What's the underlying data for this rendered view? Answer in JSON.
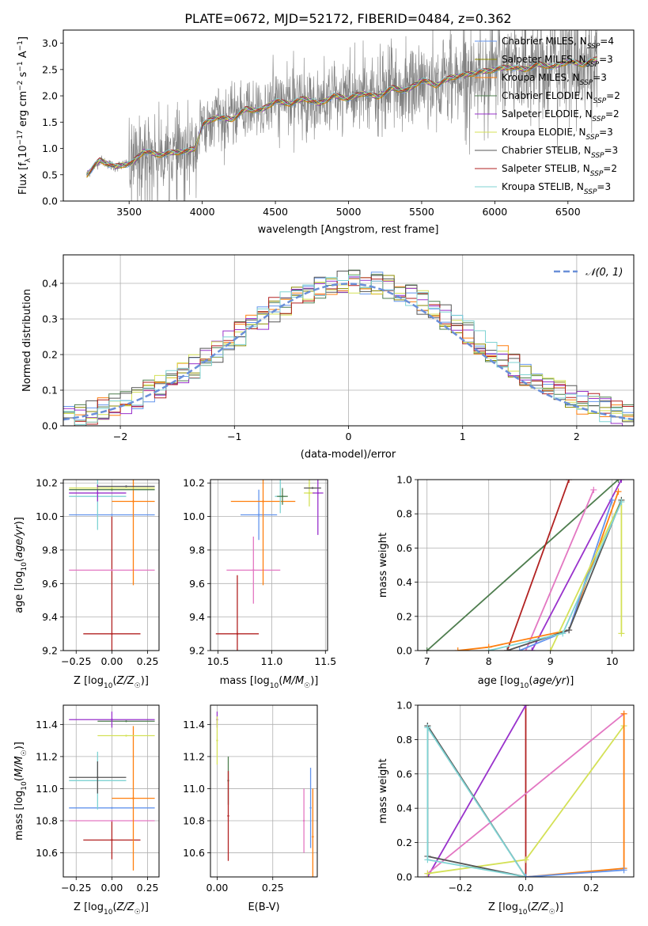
{
  "figure_title": "PLATE=0672, MJD=52172, FIBERID=0484, z=0.362",
  "colors": {
    "Chabrier MILES": "#6495ed",
    "Salpeter MILES": "#8b8b00",
    "Kroupa MILES": "#ff7f0e",
    "Chabrier ELODIE": "#4e7d4e",
    "Salpeter ELODIE": "#9932cc",
    "Kroupa ELODIE": "#d4e157",
    "Chabrier STELIB": "#555555",
    "Salpeter STELIB": "#b22222",
    "Kroupa STELIB": "#7fd3d3",
    "extra": "#e377c2",
    "data": "#808080",
    "gaussian": "#6a8fd8"
  },
  "chart_data": [
    {
      "type": "line",
      "title": "PLATE=0672, MJD=52172, FIBERID=0484, z=0.362",
      "xlabel": "wavelength [Angstrom, rest frame]",
      "ylabel": "Flux [f_λ 10^-17 erg cm^-2 s^-1 A^-1]",
      "xlim": [
        3050,
        6950
      ],
      "ylim": [
        0,
        3.25
      ],
      "xticks": [
        3500,
        4000,
        4500,
        5000,
        5500,
        6000,
        6500
      ],
      "yticks": [
        0.0,
        0.5,
        1.0,
        1.5,
        2.0,
        2.5,
        3.0
      ],
      "grid": false,
      "legend_position": "top-right",
      "legend": [
        {
          "name": "Chabrier MILES",
          "nssp": "4"
        },
        {
          "name": "Salpeter MILES",
          "nssp": "3"
        },
        {
          "name": "Kroupa MILES",
          "nssp": "3"
        },
        {
          "name": "Chabrier ELODIE",
          "nssp": "2"
        },
        {
          "name": "Salpeter ELODIE",
          "nssp": "2"
        },
        {
          "name": "Kroupa ELODIE",
          "nssp": "3"
        },
        {
          "name": "Chabrier STELIB",
          "nssp": "3"
        },
        {
          "name": "Salpeter STELIB",
          "nssp": "2"
        },
        {
          "name": "Kroupa STELIB",
          "nssp": "3"
        }
      ],
      "model_curve": {
        "x": [
          3210,
          3300,
          3400,
          3480,
          3520,
          3600,
          3700,
          3800,
          3900,
          3950,
          4000,
          4100,
          4200,
          4300,
          4400,
          4500,
          4600,
          4700,
          4800,
          4900,
          5000,
          5100,
          5200,
          5300,
          5400,
          5500,
          5600,
          5700,
          5800,
          5900,
          6000,
          6100,
          6200,
          6300,
          6400,
          6500,
          6600,
          6700
        ],
        "y": [
          0.5,
          0.78,
          0.65,
          0.7,
          0.72,
          0.95,
          0.88,
          0.92,
          0.95,
          1.0,
          1.45,
          1.6,
          1.55,
          1.75,
          1.72,
          1.9,
          1.85,
          1.95,
          1.85,
          2.0,
          1.95,
          2.05,
          1.98,
          2.15,
          2.1,
          2.3,
          2.2,
          2.35,
          2.4,
          2.45,
          2.5,
          2.55,
          2.5,
          2.6,
          2.55,
          2.65,
          2.6,
          2.7
        ]
      },
      "data_range": {
        "x": [
          3210,
          6700
        ]
      }
    },
    {
      "type": "bar",
      "xlabel": "(data-model)/error",
      "ylabel": "Normed distribution",
      "xlim": [
        -2.5,
        2.5
      ],
      "ylim": [
        0,
        0.48
      ],
      "xticks": [
        -2,
        -1,
        0,
        1,
        2
      ],
      "yticks": [
        0.0,
        0.1,
        0.2,
        0.3,
        0.4
      ],
      "grid": true,
      "legend_position": "top-right",
      "legend": [
        {
          "name": "𝒩(0, 1)"
        }
      ],
      "bin_width": 0.1
    },
    {
      "type": "scatter",
      "xlabel": "Z [log10(Z/Z☉)]",
      "ylabel": "age  [log10(age/yr)]",
      "xlim": [
        -0.34,
        0.33
      ],
      "ylim": [
        9.2,
        10.22
      ],
      "xticks": [
        -0.25,
        0.0,
        0.25
      ],
      "xticklabels": [
        "−0.25",
        "0.00",
        "0.25"
      ],
      "yticks": [
        9.2,
        9.4,
        9.6,
        9.8,
        10.0,
        10.2
      ],
      "grid": true,
      "points": [
        {
          "series": "Salpeter STELIB",
          "x": 0.0,
          "y": 9.3,
          "xerr": 0.2,
          "yerr": 0.7
        },
        {
          "series": "extra",
          "x": 0.0,
          "y": 9.68,
          "xerr": 0.3,
          "yerr": 0.0
        },
        {
          "series": "Chabrier MILES",
          "x": 0.0,
          "y": 10.01,
          "xerr": 0.3,
          "yerr": 0.0
        },
        {
          "series": "Kroupa MILES",
          "x": 0.15,
          "y": 10.09,
          "xerr": 0.15,
          "yerr": 0.5
        },
        {
          "series": "Kroupa STELIB",
          "x": -0.1,
          "y": 10.12,
          "xerr": 0.2,
          "yerr": 0.2
        },
        {
          "series": "Salpeter ELODIE",
          "x": -0.1,
          "y": 10.14,
          "xerr": 0.2,
          "yerr": 0.05
        },
        {
          "series": "Chabrier ELODIE",
          "x": 0.0,
          "y": 10.16,
          "xerr": 0.3,
          "yerr": 0.0
        },
        {
          "series": "Kroupa ELODIE",
          "x": 0.0,
          "y": 10.17,
          "xerr": 0.3,
          "yerr": 0.0
        },
        {
          "series": "Chabrier STELIB",
          "x": 0.1,
          "y": 10.18,
          "xerr": 0.2,
          "yerr": 0.0
        }
      ]
    },
    {
      "type": "scatter",
      "xlabel": "mass [log10(M/M☉)]",
      "xlim": [
        10.43,
        11.52
      ],
      "ylim": [
        9.2,
        10.22
      ],
      "xticks": [
        10.5,
        11.0,
        11.5
      ],
      "xticklabels": [
        "10.5",
        "11.0",
        "11.5"
      ],
      "yticks": [
        9.2,
        9.4,
        9.6,
        9.8,
        10.0,
        10.2
      ],
      "grid": true,
      "points": [
        {
          "series": "Salpeter STELIB",
          "x": 10.68,
          "y": 9.3,
          "xerr": 0.2,
          "yerr": 0.35
        },
        {
          "series": "extra",
          "x": 10.83,
          "y": 9.68,
          "xerr": 0.25,
          "yerr": 0.2
        },
        {
          "series": "Chabrier MILES",
          "x": 10.88,
          "y": 10.01,
          "xerr": 0.17,
          "yerr": 0.15
        },
        {
          "series": "Kroupa MILES",
          "x": 10.92,
          "y": 10.09,
          "xerr": 0.3,
          "yerr": 0.5
        },
        {
          "series": "Kroupa STELIB",
          "x": 11.08,
          "y": 10.12,
          "xerr": 0.05,
          "yerr": 0.1
        },
        {
          "series": "Chabrier ELODIE",
          "x": 11.1,
          "y": 10.12,
          "xerr": 0.05,
          "yerr": 0.05
        },
        {
          "series": "Kroupa ELODIE",
          "x": 11.35,
          "y": 10.14,
          "xerr": 0.05,
          "yerr": 0.08
        },
        {
          "series": "Salpeter ELODIE",
          "x": 11.43,
          "y": 10.14,
          "xerr": 0.05,
          "yerr": 0.25
        },
        {
          "series": "Chabrier STELIB",
          "x": 11.38,
          "y": 10.17,
          "xerr": 0.08,
          "yerr": 0.0
        }
      ]
    },
    {
      "type": "line",
      "xlabel": "age  [log10(age/yr)]",
      "ylabel": "mass weight",
      "xlim": [
        6.85,
        10.35
      ],
      "ylim": [
        0,
        1.0
      ],
      "xticks": [
        7,
        8,
        9,
        10
      ],
      "yticks": [
        0.0,
        0.2,
        0.4,
        0.6,
        0.8,
        1.0
      ],
      "grid": true,
      "series": [
        {
          "name": "Chabrier ELODIE",
          "x": [
            7.0,
            10.1
          ],
          "y": [
            0.0,
            1.0
          ]
        },
        {
          "name": "Salpeter STELIB",
          "x": [
            8.3,
            9.3
          ],
          "y": [
            0.0,
            1.0
          ]
        },
        {
          "name": "extra",
          "x": [
            8.6,
            9.7
          ],
          "y": [
            0.0,
            0.94
          ]
        },
        {
          "name": "Salpeter ELODIE",
          "x": [
            8.7,
            10.15
          ],
          "y": [
            0.0,
            1.0
          ]
        },
        {
          "name": "Kroupa MILES",
          "x": [
            7.5,
            8.0,
            9.3,
            10.1
          ],
          "y": [
            0.0,
            0.02,
            0.12,
            0.93
          ]
        },
        {
          "name": "Chabrier MILES",
          "x": [
            8.5,
            9.3,
            10.0
          ],
          "y": [
            0.0,
            0.12,
            0.88
          ]
        },
        {
          "name": "Kroupa ELODIE",
          "x": [
            9.0,
            10.15,
            10.15
          ],
          "y": [
            0.0,
            0.88,
            0.1
          ]
        },
        {
          "name": "Chabrier STELIB",
          "x": [
            8.3,
            9.3,
            10.15
          ],
          "y": [
            0.0,
            0.12,
            0.88
          ]
        },
        {
          "name": "Kroupa STELIB",
          "x": [
            8.0,
            9.2,
            10.15
          ],
          "y": [
            0.0,
            0.1,
            0.87
          ]
        }
      ]
    },
    {
      "type": "scatter",
      "xlabel": "Z [log10(Z/Z☉)]",
      "ylabel": "mass [log10(M/M☉)]",
      "xlim": [
        -0.34,
        0.33
      ],
      "ylim": [
        10.45,
        11.52
      ],
      "xticks": [
        -0.25,
        0.0,
        0.25
      ],
      "xticklabels": [
        "−0.25",
        "0.00",
        "0.25"
      ],
      "yticks": [
        10.6,
        10.8,
        11.0,
        11.2,
        11.4
      ],
      "grid": true,
      "points": [
        {
          "series": "Salpeter STELIB",
          "x": 0.0,
          "y": 10.68,
          "xerr": 0.2,
          "yerr": 0.12
        },
        {
          "series": "extra",
          "x": 0.0,
          "y": 10.8,
          "xerr": 0.3,
          "yerr": 0.0
        },
        {
          "series": "Chabrier MILES",
          "x": 0.0,
          "y": 10.88,
          "xerr": 0.3,
          "yerr": 0.0
        },
        {
          "series": "Kroupa MILES",
          "x": 0.15,
          "y": 10.94,
          "xerr": 0.15,
          "yerr": 0.45
        },
        {
          "series": "Kroupa STELIB",
          "x": -0.1,
          "y": 11.05,
          "xerr": 0.2,
          "yerr": 0.18
        },
        {
          "series": "Chabrier STELIB",
          "x": -0.1,
          "y": 11.07,
          "xerr": 0.2,
          "yerr": 0.1
        },
        {
          "series": "Kroupa ELODIE",
          "x": 0.1,
          "y": 11.33,
          "xerr": 0.2,
          "yerr": 0.0
        },
        {
          "series": "Chabrier ELODIE",
          "x": 0.1,
          "y": 11.42,
          "xerr": 0.2,
          "yerr": 0.0
        },
        {
          "series": "Salpeter ELODIE",
          "x": 0.0,
          "y": 11.43,
          "xerr": 0.3,
          "yerr": 0.05
        }
      ]
    },
    {
      "type": "scatter",
      "xlabel": "E(B-V)",
      "xlim": [
        -0.03,
        0.45
      ],
      "ylim": [
        10.45,
        11.52
      ],
      "xticks": [
        0.0,
        0.25
      ],
      "xticklabels": [
        "0.00",
        "0.25"
      ],
      "yticks": [
        10.6,
        10.8,
        11.0,
        11.2,
        11.4
      ],
      "grid": true,
      "points": [
        {
          "series": "Salpeter ELODIE",
          "x": 0.0,
          "y": 11.43,
          "yerr": 0.05
        },
        {
          "series": "Kroupa ELODIE",
          "x": 0.0,
          "y": 11.3,
          "yerr": 0.15
        },
        {
          "series": "Chabrier ELODIE",
          "x": 0.05,
          "y": 11.05,
          "yerr": 0.15
        },
        {
          "series": "Salpeter STELIB",
          "x": 0.05,
          "y": 10.83,
          "yerr": 0.28
        },
        {
          "series": "extra",
          "x": 0.39,
          "y": 10.8,
          "yerr": 0.2
        },
        {
          "series": "Chabrier MILES",
          "x": 0.42,
          "y": 10.88,
          "yerr": 0.25
        },
        {
          "series": "Kroupa MILES",
          "x": 0.43,
          "y": 10.7,
          "yerr": 0.3
        }
      ]
    },
    {
      "type": "line",
      "xlabel": "Z [log10(Z/Z☉)]",
      "ylabel": "mass weight",
      "xlim": [
        -0.33,
        0.33
      ],
      "ylim": [
        0,
        1.0
      ],
      "xticks": [
        -0.2,
        0.0,
        0.2
      ],
      "xticklabels": [
        "−0.2",
        "0.0",
        "0.2"
      ],
      "yticks": [
        0.0,
        0.2,
        0.4,
        0.6,
        0.8,
        1.0
      ],
      "grid": true,
      "series": [
        {
          "name": "Salpeter STELIB",
          "x": [
            0.0,
            0.0
          ],
          "y": [
            0.0,
            1.0
          ]
        },
        {
          "name": "Salpeter ELODIE",
          "x": [
            -0.3,
            0.0
          ],
          "y": [
            0.0,
            1.0
          ]
        },
        {
          "name": "extra",
          "x": [
            -0.3,
            0.3
          ],
          "y": [
            0.02,
            0.95
          ]
        },
        {
          "name": "Kroupa ELODIE",
          "x": [
            -0.3,
            0.0,
            0.3
          ],
          "y": [
            0.02,
            0.1,
            0.88
          ]
        },
        {
          "name": "Chabrier STELIB",
          "x": [
            -0.3,
            0.0,
            -0.3,
            -0.3
          ],
          "y": [
            0.88,
            0.0,
            0.12,
            0.88
          ]
        },
        {
          "name": "Kroupa STELIB",
          "x": [
            -0.3,
            0.0,
            -0.3,
            -0.3
          ],
          "y": [
            0.87,
            0.0,
            0.1,
            0.87
          ]
        },
        {
          "name": "Kroupa MILES",
          "x": [
            0.0,
            0.3,
            0.3
          ],
          "y": [
            0.0,
            0.05,
            0.95
          ]
        },
        {
          "name": "Chabrier MILES",
          "x": [
            0.0,
            0.3
          ],
          "y": [
            0.0,
            0.04
          ]
        }
      ]
    }
  ]
}
